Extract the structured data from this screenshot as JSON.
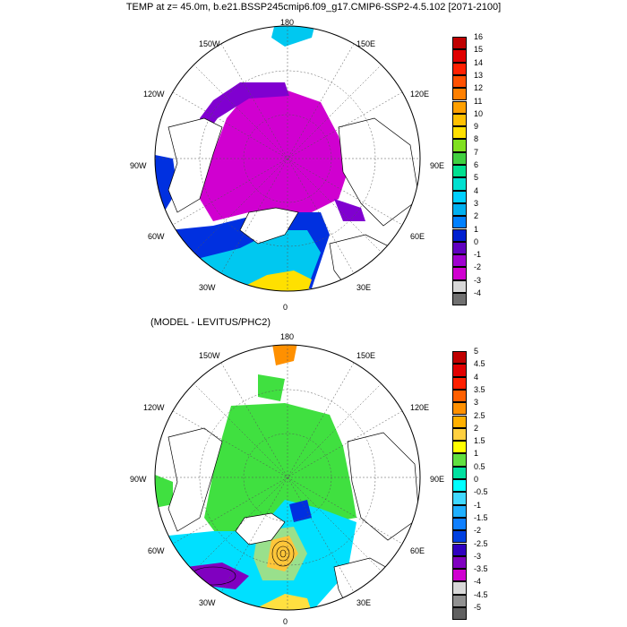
{
  "title": "TEMP at z=  45.0m, b.e21.BSSP245cmip6.f09_g17.CMIP6-SSP2-4.5.102 [2071-2100]",
  "subtitle": "(MODEL - LEVITUS/PHC2)",
  "longitude_labels": {
    "top": "180",
    "bottom": "0",
    "w150": "150W",
    "e150": "150E",
    "w120": "120W",
    "e120": "120E",
    "w90": "90W",
    "e90": "90E",
    "w60": "60W",
    "e60": "60E",
    "w30": "30W",
    "e30": "30E"
  },
  "colorbar_top": {
    "labels": [
      "16",
      "15",
      "14",
      "13",
      "12",
      "11",
      "10",
      "9",
      "8",
      "7",
      "6",
      "5",
      "4",
      "3",
      "2",
      "1",
      "0",
      "-1",
      "-2",
      "-3",
      "-4"
    ],
    "colors": [
      "#c00000",
      "#e00000",
      "#ff2000",
      "#ff5000",
      "#ff8000",
      "#ffa000",
      "#ffc000",
      "#ffe000",
      "#80e020",
      "#40d040",
      "#00e090",
      "#00e0d0",
      "#00d0ff",
      "#00b0f0",
      "#0080ff",
      "#0020d0",
      "#6000c0",
      "#a000d0",
      "#d000d0",
      "#d8d8d8",
      "#707070"
    ]
  },
  "colorbar_bottom": {
    "labels": [
      "5",
      "4.5",
      "4",
      "3.5",
      "3",
      "2.5",
      "2",
      "1.5",
      "1",
      "0.5",
      "0",
      "-0.5",
      "-1",
      "-1.5",
      "-2",
      "-2.5",
      "-3",
      "-3.5",
      "-4",
      "-4.5",
      "-5"
    ],
    "colors": [
      "#c00000",
      "#e00000",
      "#ff2000",
      "#ff6000",
      "#ff9000",
      "#ffb000",
      "#ffd040",
      "#ffff00",
      "#60e040",
      "#00e0a0",
      "#00ffff",
      "#40d8ff",
      "#20b0ff",
      "#1080ff",
      "#0040e0",
      "#3000c0",
      "#8000c0",
      "#d000d0",
      "#d8d8d8",
      "#909090",
      "#606060"
    ]
  },
  "colors": {
    "top_arctic": "#d000d0",
    "top_shelf": "#8000d0",
    "top_blue": "#0030e0",
    "top_cyan": "#00c8f0",
    "top_yellow": "#ffe000",
    "bottom_green": "#40e040",
    "bottom_cyan": "#00e0ff",
    "bottom_orange": "#ff9000"
  }
}
